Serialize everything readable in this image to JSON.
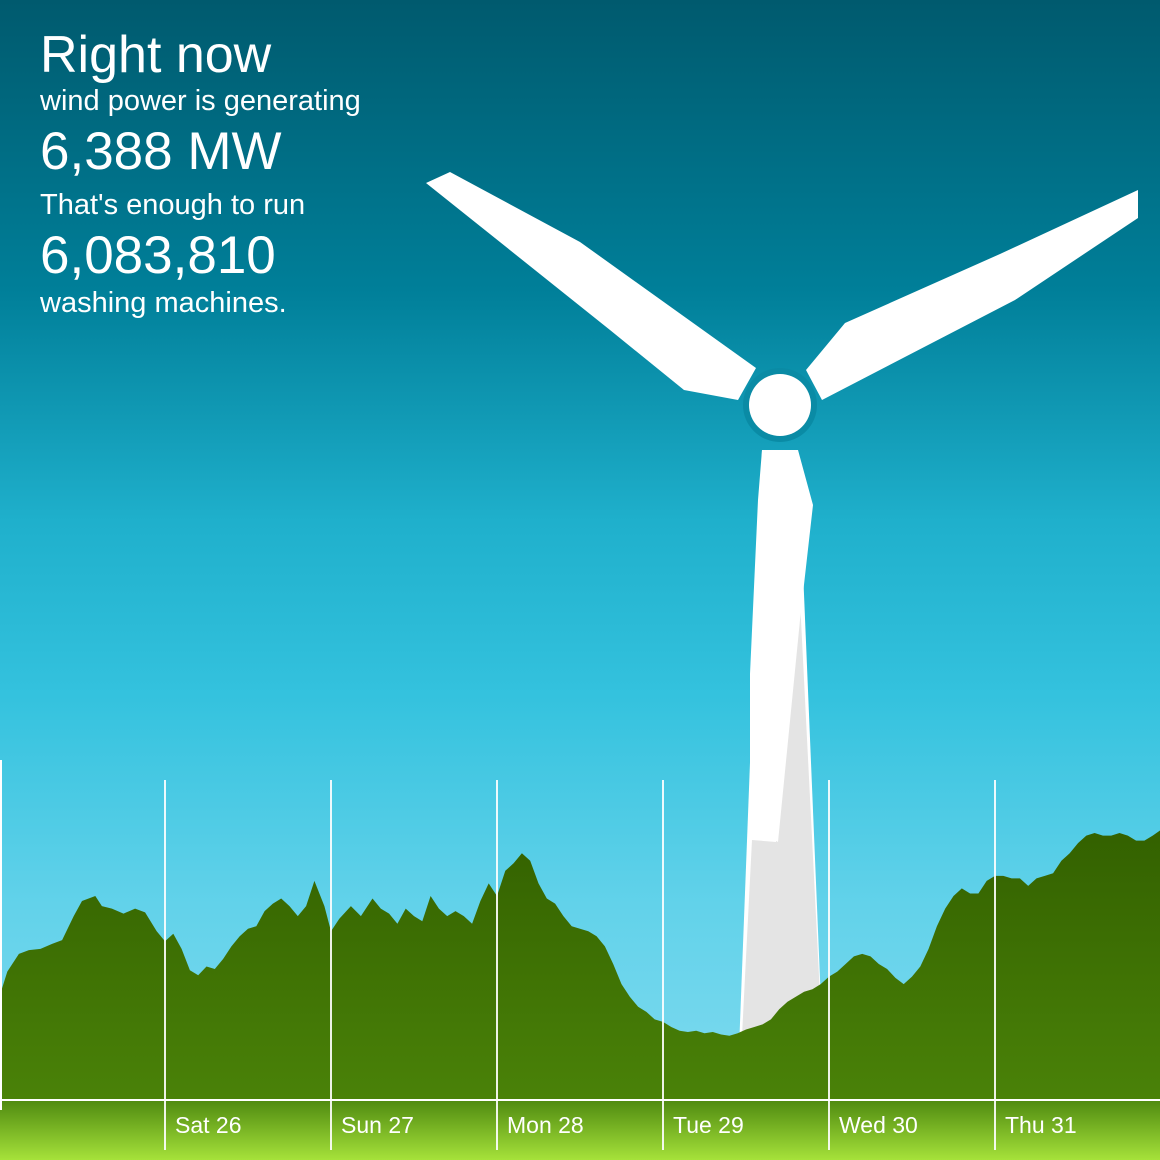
{
  "stats": {
    "heading": "Right now",
    "line1": "wind power is generating",
    "power": "6,388 MW",
    "line2": "That's enough to run",
    "count": "6,083,810",
    "line3": "washing machines."
  },
  "colors": {
    "sky_top": "#005a6e",
    "sky_bottom": "#86dcf0",
    "area_fill_top": "#336100",
    "area_fill_bottom": "#4a8208",
    "ground_top": "#4f8a10",
    "ground_bottom": "#a6e23a",
    "turbine": "#ffffff",
    "gridline": "#ffffff"
  },
  "chart_data": {
    "type": "area",
    "categories": [
      "",
      "Sat 26",
      "Sun 27",
      "Mon 28",
      "Tue 29",
      "Wed 30",
      "Thu 31"
    ],
    "day_labels": [
      "Sat 26",
      "Sun 27",
      "Mon 28",
      "Tue 29",
      "Wed 30",
      "Thu 31"
    ],
    "x_unit": "days from start of chart",
    "ylim": [
      0,
      13500
    ],
    "series": [
      {
        "points": [
          [
            0.0,
            4050
          ],
          [
            0.05,
            5100
          ],
          [
            0.12,
            5800
          ],
          [
            0.18,
            5950
          ],
          [
            0.25,
            6000
          ],
          [
            0.32,
            6200
          ],
          [
            0.38,
            6350
          ],
          [
            0.45,
            7300
          ],
          [
            0.5,
            7900
          ],
          [
            0.58,
            8100
          ],
          [
            0.62,
            7700
          ],
          [
            0.68,
            7600
          ],
          [
            0.75,
            7400
          ],
          [
            0.82,
            7600
          ],
          [
            0.88,
            7450
          ],
          [
            0.95,
            6700
          ],
          [
            1.0,
            6300
          ],
          [
            1.05,
            6600
          ],
          [
            1.1,
            6000
          ],
          [
            1.15,
            5150
          ],
          [
            1.2,
            4950
          ],
          [
            1.25,
            5300
          ],
          [
            1.3,
            5200
          ],
          [
            1.35,
            5600
          ],
          [
            1.4,
            6100
          ],
          [
            1.45,
            6500
          ],
          [
            1.5,
            6800
          ],
          [
            1.55,
            6900
          ],
          [
            1.6,
            7500
          ],
          [
            1.65,
            7800
          ],
          [
            1.7,
            8000
          ],
          [
            1.75,
            7700
          ],
          [
            1.8,
            7300
          ],
          [
            1.85,
            7700
          ],
          [
            1.9,
            8700
          ],
          [
            1.96,
            7700
          ],
          [
            2.0,
            6700
          ],
          [
            2.05,
            7200
          ],
          [
            2.12,
            7700
          ],
          [
            2.18,
            7300
          ],
          [
            2.25,
            8000
          ],
          [
            2.3,
            7600
          ],
          [
            2.35,
            7400
          ],
          [
            2.4,
            7000
          ],
          [
            2.45,
            7600
          ],
          [
            2.5,
            7300
          ],
          [
            2.55,
            7100
          ],
          [
            2.6,
            8100
          ],
          [
            2.65,
            7600
          ],
          [
            2.7,
            7300
          ],
          [
            2.75,
            7500
          ],
          [
            2.8,
            7300
          ],
          [
            2.85,
            7000
          ],
          [
            2.9,
            7900
          ],
          [
            2.95,
            8600
          ],
          [
            3.0,
            8100
          ],
          [
            3.05,
            9100
          ],
          [
            3.1,
            9400
          ],
          [
            3.15,
            9800
          ],
          [
            3.2,
            9500
          ],
          [
            3.25,
            8600
          ],
          [
            3.3,
            8000
          ],
          [
            3.35,
            7800
          ],
          [
            3.4,
            7300
          ],
          [
            3.45,
            6900
          ],
          [
            3.5,
            6800
          ],
          [
            3.55,
            6700
          ],
          [
            3.6,
            6500
          ],
          [
            3.65,
            6100
          ],
          [
            3.7,
            5400
          ],
          [
            3.75,
            4600
          ],
          [
            3.8,
            4100
          ],
          [
            3.85,
            3700
          ],
          [
            3.9,
            3500
          ],
          [
            3.95,
            3200
          ],
          [
            4.0,
            3100
          ],
          [
            4.05,
            2900
          ],
          [
            4.1,
            2750
          ],
          [
            4.15,
            2700
          ],
          [
            4.2,
            2750
          ],
          [
            4.25,
            2650
          ],
          [
            4.3,
            2700
          ],
          [
            4.35,
            2600
          ],
          [
            4.4,
            2550
          ],
          [
            4.45,
            2650
          ],
          [
            4.5,
            2800
          ],
          [
            4.55,
            2900
          ],
          [
            4.6,
            3000
          ],
          [
            4.65,
            3200
          ],
          [
            4.7,
            3600
          ],
          [
            4.75,
            3900
          ],
          [
            4.8,
            4100
          ],
          [
            4.85,
            4300
          ],
          [
            4.9,
            4400
          ],
          [
            4.95,
            4600
          ],
          [
            5.0,
            4900
          ],
          [
            5.05,
            5100
          ],
          [
            5.1,
            5400
          ],
          [
            5.15,
            5700
          ],
          [
            5.2,
            5800
          ],
          [
            5.25,
            5700
          ],
          [
            5.3,
            5400
          ],
          [
            5.35,
            5200
          ],
          [
            5.4,
            4850
          ],
          [
            5.45,
            4600
          ],
          [
            5.5,
            4900
          ],
          [
            5.55,
            5300
          ],
          [
            5.6,
            6000
          ],
          [
            5.65,
            6900
          ],
          [
            5.7,
            7600
          ],
          [
            5.75,
            8100
          ],
          [
            5.8,
            8400
          ],
          [
            5.85,
            8200
          ],
          [
            5.9,
            8200
          ],
          [
            5.95,
            8700
          ],
          [
            6.0,
            8900
          ],
          [
            6.05,
            8900
          ],
          [
            6.1,
            8800
          ],
          [
            6.15,
            8800
          ],
          [
            6.2,
            8500
          ],
          [
            6.25,
            8800
          ],
          [
            6.3,
            8900
          ],
          [
            6.35,
            9000
          ],
          [
            6.4,
            9500
          ],
          [
            6.45,
            9800
          ],
          [
            6.5,
            10200
          ],
          [
            6.55,
            10500
          ],
          [
            6.6,
            10600
          ],
          [
            6.65,
            10500
          ],
          [
            6.7,
            10500
          ],
          [
            6.75,
            10600
          ],
          [
            6.8,
            10500
          ],
          [
            6.85,
            10300
          ],
          [
            6.9,
            10300
          ],
          [
            6.95,
            10500
          ],
          [
            7.0,
            10700
          ]
        ]
      }
    ]
  }
}
